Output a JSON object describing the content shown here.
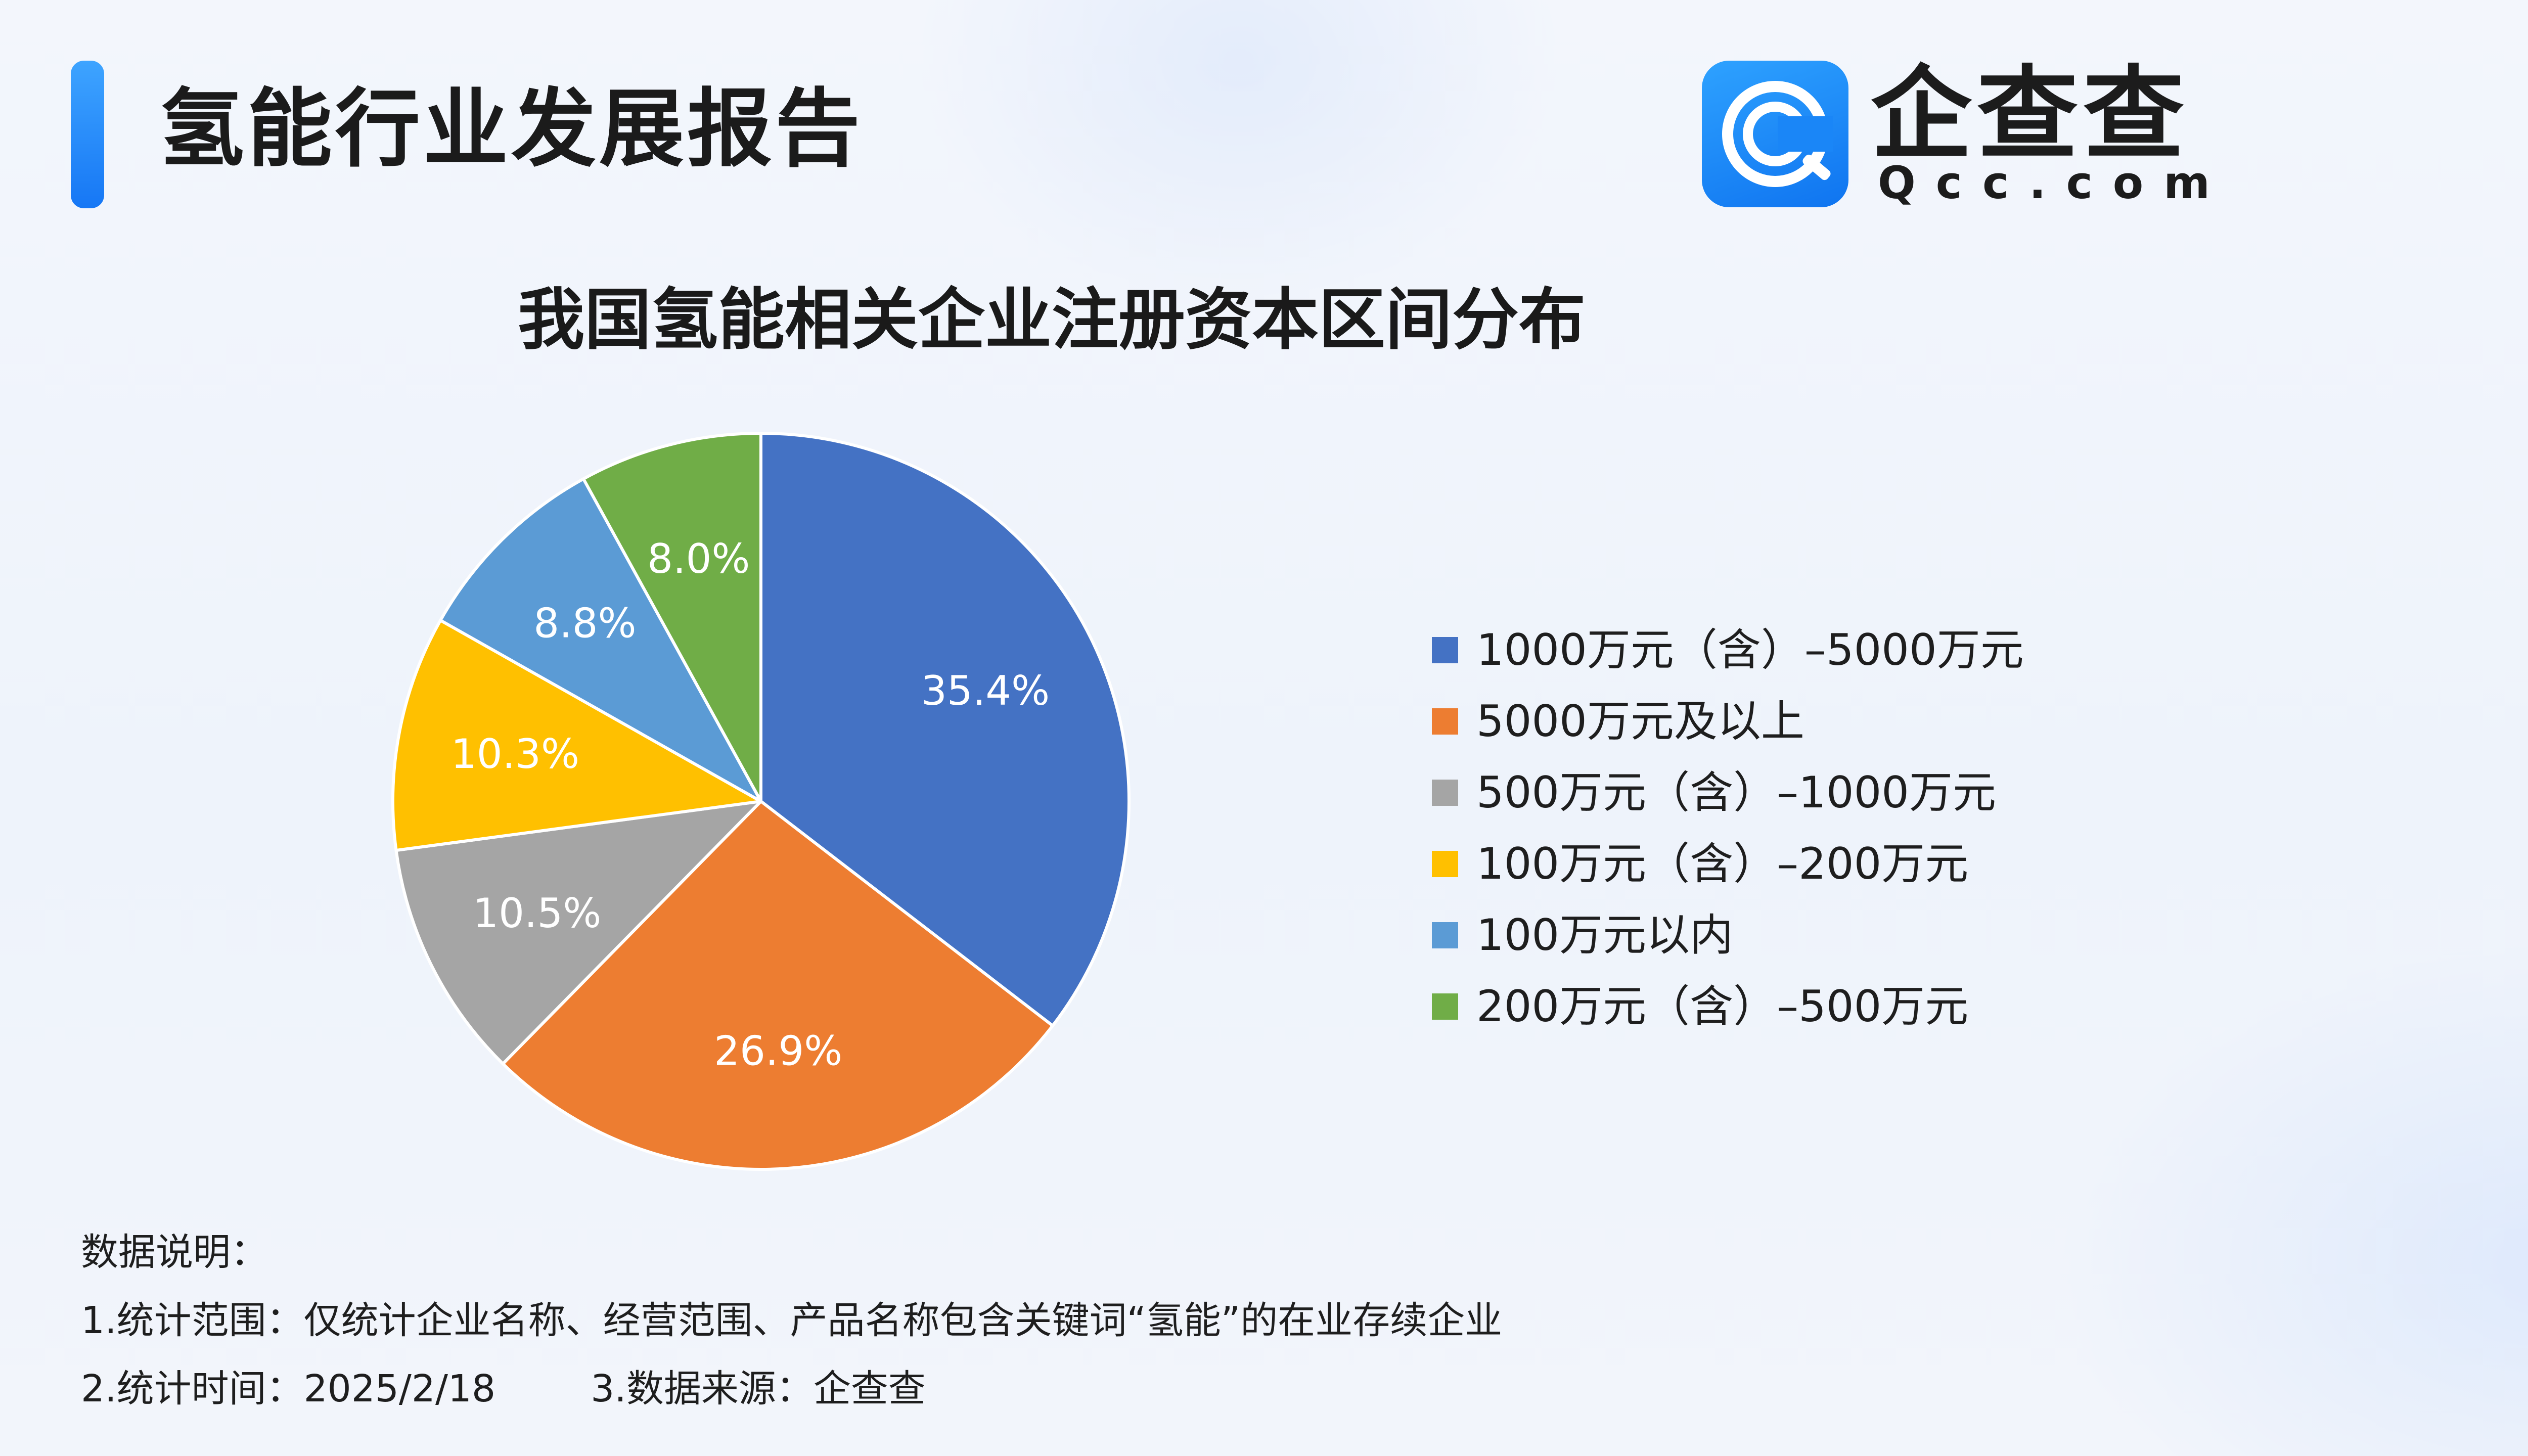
{
  "header": {
    "title": "氢能行业发展报告",
    "logo_cn": "企查查",
    "logo_en": "Qcc.com"
  },
  "colors": {
    "accent": "#1677f5",
    "logo_tile": "#1a86f7"
  },
  "chart_data": {
    "type": "pie",
    "title": "我国氢能相关企业注册资本区间分布",
    "start_angle_deg": 0,
    "direction": "clockwise",
    "legend_position": "right",
    "slices": [
      {
        "label": "1000万元（含）–5000万元",
        "value": 35.4,
        "display": "35.4%",
        "color": "#4472c4"
      },
      {
        "label": "5000万元及以上",
        "value": 26.9,
        "display": "26.9%",
        "color": "#ed7d31"
      },
      {
        "label": "500万元（含）–1000万元",
        "value": 10.5,
        "display": "10.5%",
        "color": "#a5a5a5"
      },
      {
        "label": "100万元（含）–200万元",
        "value": 10.3,
        "display": "10.3%",
        "color": "#ffc000"
      },
      {
        "label": "100万元以内",
        "value": 8.8,
        "display": "8.8%",
        "color": "#5b9bd5"
      },
      {
        "label": "200万元（含）–500万元",
        "value": 8.0,
        "display": "8.0%",
        "color": "#70ad47"
      }
    ]
  },
  "notes": {
    "heading": "数据说明：",
    "scope": "1.统计范围：仅统计企业名称、经营范围、产品名称包含关键词“氢能”的在业存续企业",
    "time_and_source": "2.统计时间：2025/2/18        3.数据来源：企查查"
  }
}
